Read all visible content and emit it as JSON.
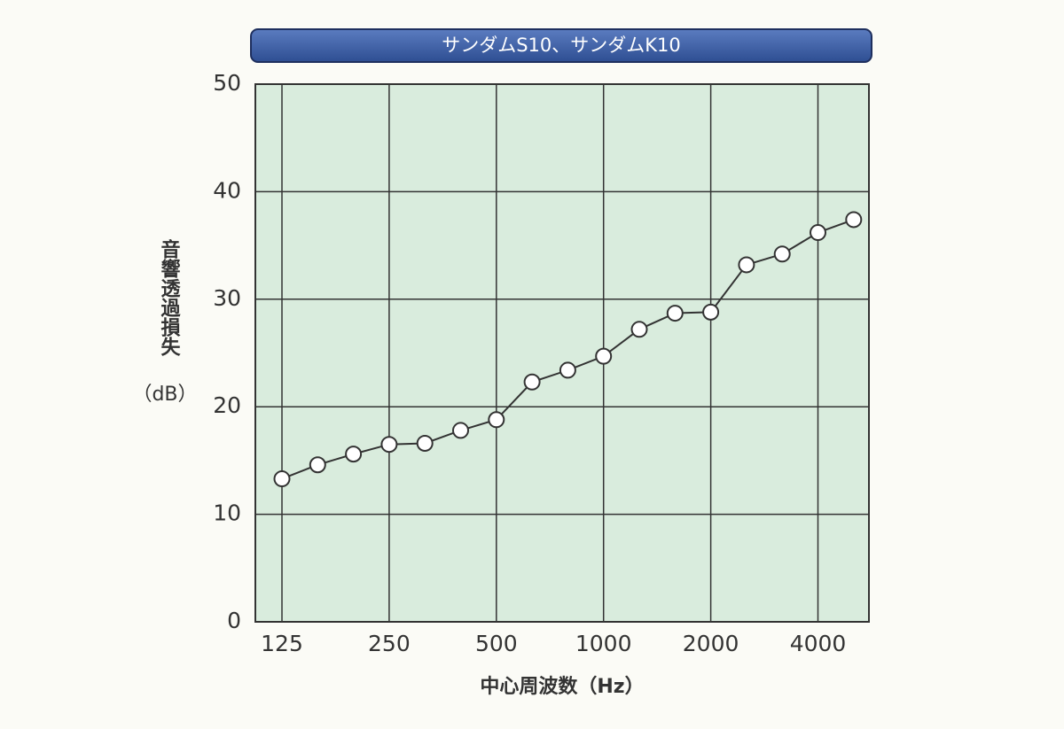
{
  "chart_data": {
    "type": "line",
    "title": "サンダムS10、サンダムK10",
    "y_label": "音響透過損失",
    "y_unit": "（dB）",
    "x_label": "中心周波数（Hz）",
    "categories": [
      "125",
      null,
      null,
      "250",
      null,
      null,
      "500",
      null,
      null,
      "1000",
      null,
      null,
      "2000",
      null,
      null,
      "4000",
      null
    ],
    "values": [
      13.3,
      14.6,
      15.6,
      16.5,
      16.6,
      17.8,
      18.8,
      22.3,
      23.4,
      24.7,
      27.2,
      28.7,
      28.8,
      33.2,
      34.2,
      36.2,
      37.4
    ],
    "color": "#333333",
    "ylim": [
      0,
      50
    ],
    "yticks": [
      0,
      10,
      20,
      30,
      40,
      50
    ],
    "grid": true
  }
}
